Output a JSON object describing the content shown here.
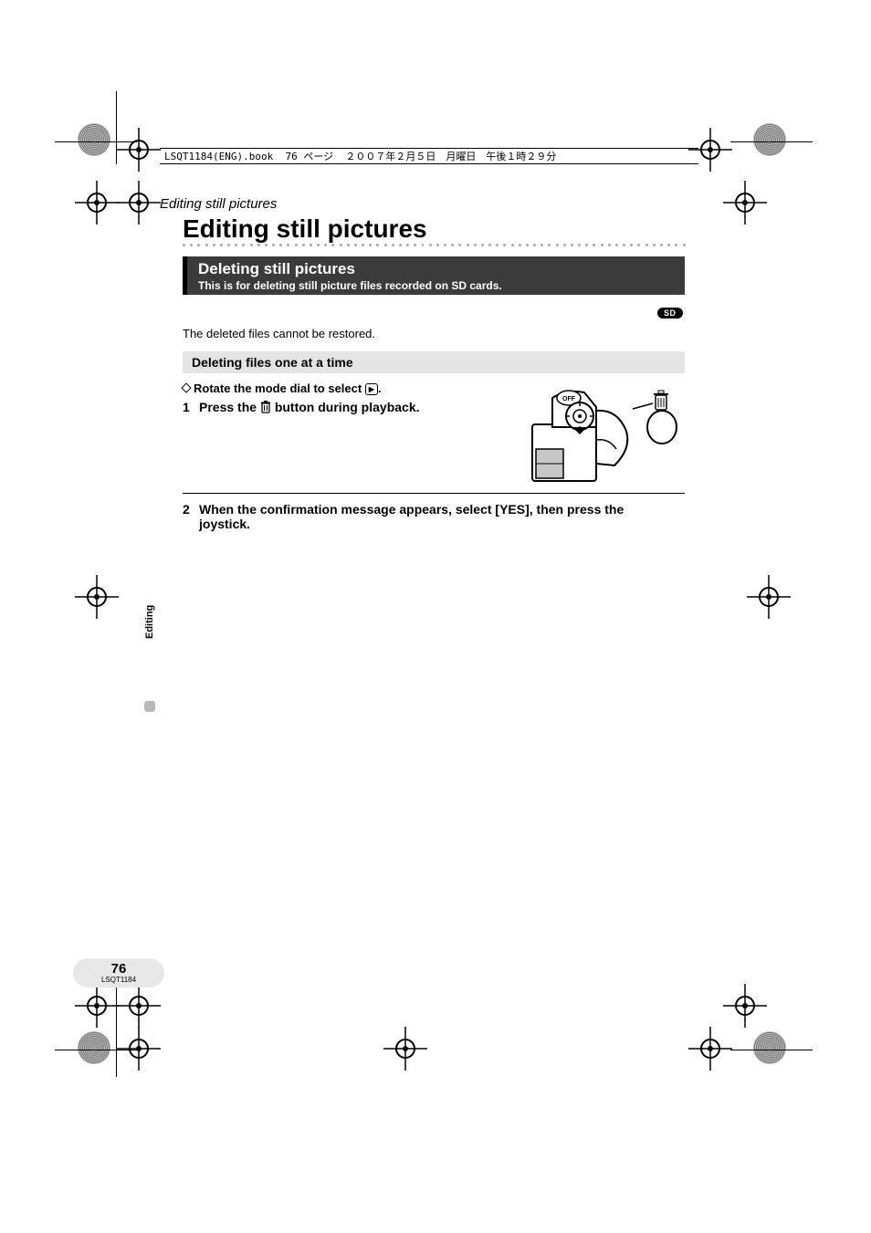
{
  "header": {
    "print_info": "LSQT1184(ENG).book  76 ページ  ２００７年２月５日　月曜日　午後１時２９分"
  },
  "crumb": "Editing still pictures",
  "title": "Editing still pictures",
  "band": {
    "title": "Deleting still pictures",
    "subtitle": "This is for deleting still picture files recorded on SD cards."
  },
  "badges": {
    "sd": "SD"
  },
  "note": "The deleted files cannot be restored.",
  "subheading": "Deleting files one at a time",
  "steps": {
    "rotate_prefix": "Rotate the mode dial to select ",
    "rotate_suffix": ".",
    "s1_num": "1",
    "s1_a": "Press the ",
    "s1_b": " button during playback.",
    "s2_num": "2",
    "s2": "When the confirmation message appears, select [YES], then press the joystick."
  },
  "side": {
    "tab": "Editing"
  },
  "footer": {
    "page": "76",
    "code": "LSQT1184"
  },
  "style": {
    "dot_color": "#c39aa8",
    "band_bg": "#3b3b3b",
    "grey_bar": "#e4e4e4",
    "page_pill": "#e8e8e8"
  }
}
